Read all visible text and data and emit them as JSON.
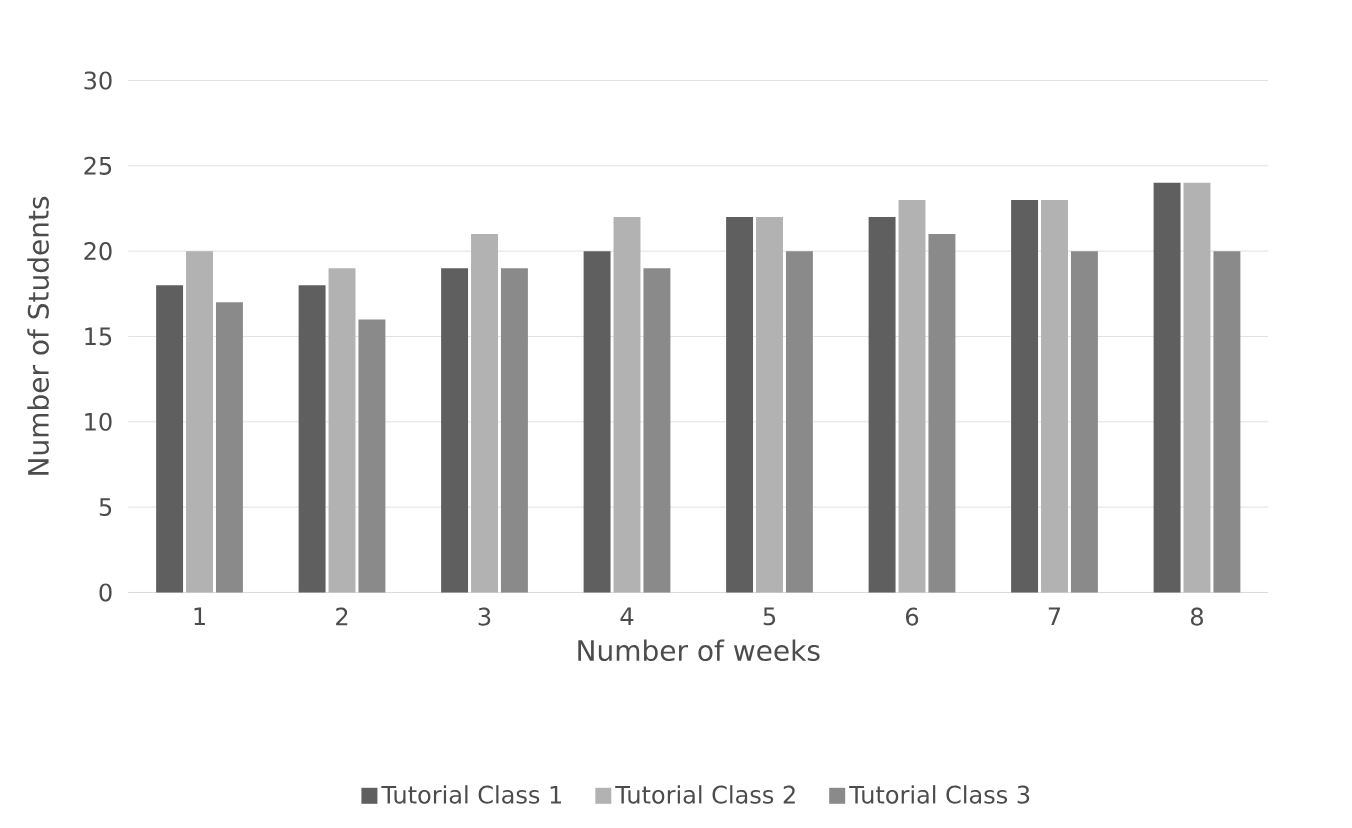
{
  "chart_data": {
    "type": "bar",
    "xlabel": "Number of weeks",
    "ylabel": "Number of Students",
    "categories": [
      "1",
      "2",
      "3",
      "4",
      "5",
      "6",
      "7",
      "8"
    ],
    "series": [
      {
        "name": "Tutorial Class 1",
        "color": "#5f5f5f",
        "values": [
          18,
          18,
          19,
          20,
          22,
          22,
          23,
          24
        ]
      },
      {
        "name": "Tutorial Class 2",
        "color": "#b2b2b2",
        "values": [
          20,
          19,
          21,
          22,
          22,
          23,
          23,
          24
        ]
      },
      {
        "name": "Tutorial Class 3",
        "color": "#8a8a8a",
        "values": [
          17,
          16,
          19,
          19,
          20,
          21,
          20,
          20
        ]
      }
    ],
    "ylim": [
      0,
      30
    ],
    "yticks": [
      0,
      5,
      10,
      15,
      20,
      25,
      30
    ],
    "grid": "y",
    "legend": "bottom"
  }
}
